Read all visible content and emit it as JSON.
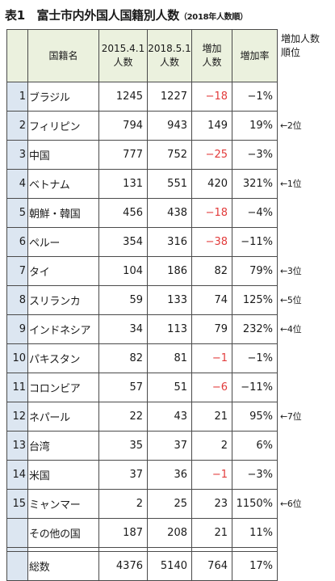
{
  "title": {
    "main": "表1　富士市内外国人国籍別人数",
    "sub": "（2018年人数順）"
  },
  "headers": {
    "no": "",
    "nationality": "国籍名",
    "y2015": "2015.4.1\n人数",
    "y2018": "2018.5.1\n人数",
    "increase": "増加\n人数",
    "rate": "増加率",
    "rank": "増加人数\n順位"
  },
  "rows": [
    {
      "no": "1",
      "name": "ブラジル",
      "y2015": "1245",
      "y2018": "1227",
      "increase": "−18",
      "rate": "−1%",
      "rank": ""
    },
    {
      "no": "2",
      "name": "フィリピン",
      "y2015": "794",
      "y2018": "943",
      "increase": "149",
      "rate": "19%",
      "rank": "←2位"
    },
    {
      "no": "3",
      "name": "中国",
      "y2015": "777",
      "y2018": "752",
      "increase": "−25",
      "rate": "−3%",
      "rank": ""
    },
    {
      "no": "4",
      "name": "ベトナム",
      "y2015": "131",
      "y2018": "551",
      "increase": "420",
      "rate": "321%",
      "rank": "←1位"
    },
    {
      "no": "5",
      "name": "朝鮮・韓国",
      "y2015": "456",
      "y2018": "438",
      "increase": "−18",
      "rate": "−4%",
      "rank": ""
    },
    {
      "no": "6",
      "name": "ペルー",
      "y2015": "354",
      "y2018": "316",
      "increase": "−38",
      "rate": "−11%",
      "rank": ""
    },
    {
      "no": "7",
      "name": "タイ",
      "y2015": "104",
      "y2018": "186",
      "increase": "82",
      "rate": "79%",
      "rank": "←3位"
    },
    {
      "no": "8",
      "name": "スリランカ",
      "y2015": "59",
      "y2018": "133",
      "increase": "74",
      "rate": "125%",
      "rank": "←5位"
    },
    {
      "no": "9",
      "name": "インドネシア",
      "y2015": "34",
      "y2018": "113",
      "increase": "79",
      "rate": "232%",
      "rank": "←4位"
    },
    {
      "no": "10",
      "name": "パキスタン",
      "y2015": "82",
      "y2018": "81",
      "increase": "−1",
      "rate": "−1%",
      "rank": ""
    },
    {
      "no": "11",
      "name": "コロンビア",
      "y2015": "57",
      "y2018": "51",
      "increase": "−6",
      "rate": "−11%",
      "rank": ""
    },
    {
      "no": "12",
      "name": "ネパール",
      "y2015": "22",
      "y2018": "43",
      "increase": "21",
      "rate": "95%",
      "rank": "←7位"
    },
    {
      "no": "13",
      "name": "台湾",
      "y2015": "35",
      "y2018": "37",
      "increase": "2",
      "rate": "6%",
      "rank": ""
    },
    {
      "no": "14",
      "name": "米国",
      "y2015": "37",
      "y2018": "36",
      "increase": "−1",
      "rate": "−3%",
      "rank": ""
    },
    {
      "no": "15",
      "name": "ミャンマー",
      "y2015": "2",
      "y2018": "25",
      "increase": "23",
      "rate": "1150%",
      "rank": "←6位"
    },
    {
      "no": "",
      "name": "その他の国",
      "y2015": "187",
      "y2018": "208",
      "increase": "21",
      "rate": "11%",
      "rank": ""
    }
  ],
  "total": {
    "no": "",
    "name": "総数",
    "y2015": "4376",
    "y2018": "5140",
    "increase": "764",
    "rate": "17%"
  },
  "colors": {
    "header_bg": "#ebf1de",
    "number_col_bg": "#dce6f1",
    "negative": "#e23b3b",
    "border": "#4a4a4a"
  }
}
